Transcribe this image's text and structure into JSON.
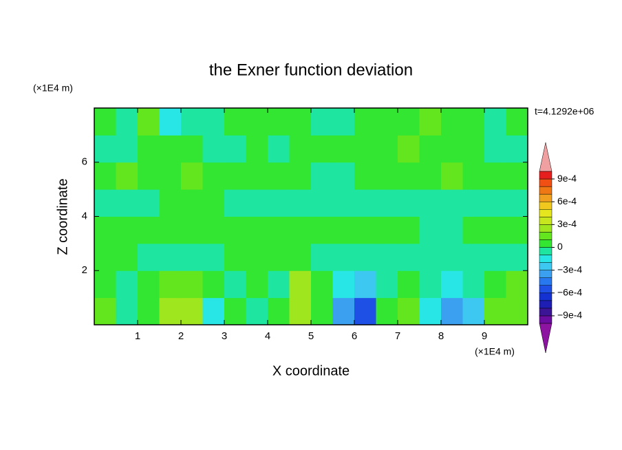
{
  "chart_data": {
    "type": "contour",
    "title": "the Exner function deviation",
    "x_label": "X coordinate",
    "y_label": "Z coordinate",
    "x_unit_label": "(×1E4 m)",
    "y_unit_label": "(×1E4 m)",
    "time_label": "t=4.1292e+06",
    "xlim": [
      0,
      10
    ],
    "ylim": [
      0,
      8
    ],
    "xticks": [
      1,
      2,
      3,
      4,
      5,
      6,
      7,
      8,
      9
    ],
    "yticks": [
      2,
      4,
      6
    ],
    "x": [
      0.25,
      0.75,
      1.25,
      1.75,
      2.25,
      2.75,
      3.25,
      3.75,
      4.25,
      4.75,
      5.25,
      5.75,
      6.25,
      6.75,
      7.25,
      7.75,
      8.25,
      8.75,
      9.25,
      9.75
    ],
    "y": [
      0.5,
      1.5,
      2.5,
      3.5,
      4.5,
      5.5,
      6.5,
      7.5
    ],
    "z": [
      [
        0.00015,
        -5e-05,
        5e-05,
        0.00025,
        0.00025,
        -0.00015,
        5e-05,
        -5e-05,
        5e-05,
        0.00025,
        5e-05,
        -0.00035,
        -0.00055,
        5e-05,
        0.00015,
        -0.00015,
        -0.00035,
        -0.00025,
        0.00015,
        0.00015
      ],
      [
        5e-05,
        -5e-05,
        5e-05,
        0.00015,
        0.00015,
        5e-05,
        -5e-05,
        5e-05,
        -5e-05,
        0.00025,
        5e-05,
        -0.00015,
        -0.00025,
        -5e-05,
        5e-05,
        -5e-05,
        -0.00015,
        -5e-05,
        5e-05,
        0.00015
      ],
      [
        5e-05,
        5e-05,
        -5e-05,
        -5e-05,
        -5e-05,
        -5e-05,
        5e-05,
        5e-05,
        5e-05,
        5e-05,
        -5e-05,
        -5e-05,
        -5e-05,
        -5e-05,
        -5e-05,
        -5e-05,
        -5e-05,
        -5e-05,
        -5e-05,
        -5e-05
      ],
      [
        5e-05,
        5e-05,
        5e-05,
        5e-05,
        5e-05,
        5e-05,
        5e-05,
        5e-05,
        5e-05,
        5e-05,
        5e-05,
        5e-05,
        5e-05,
        5e-05,
        5e-05,
        -5e-05,
        -5e-05,
        5e-05,
        5e-05,
        5e-05
      ],
      [
        -5e-05,
        -5e-05,
        -5e-05,
        5e-05,
        5e-05,
        5e-05,
        -5e-05,
        -5e-05,
        -5e-05,
        -5e-05,
        -5e-05,
        -5e-05,
        -5e-05,
        -5e-05,
        -5e-05,
        -5e-05,
        -5e-05,
        -5e-05,
        -5e-05,
        -5e-05
      ],
      [
        5e-05,
        0.00015,
        5e-05,
        5e-05,
        0.00015,
        5e-05,
        5e-05,
        5e-05,
        5e-05,
        5e-05,
        -5e-05,
        -5e-05,
        5e-05,
        5e-05,
        5e-05,
        5e-05,
        0.00015,
        5e-05,
        5e-05,
        5e-05
      ],
      [
        -5e-05,
        -5e-05,
        5e-05,
        5e-05,
        5e-05,
        -5e-05,
        -5e-05,
        5e-05,
        -5e-05,
        5e-05,
        5e-05,
        5e-05,
        5e-05,
        5e-05,
        0.00015,
        5e-05,
        5e-05,
        5e-05,
        -5e-05,
        -5e-05
      ],
      [
        5e-05,
        -5e-05,
        0.00015,
        -0.00015,
        -5e-05,
        -5e-05,
        5e-05,
        5e-05,
        5e-05,
        5e-05,
        -5e-05,
        -5e-05,
        5e-05,
        5e-05,
        5e-05,
        0.00015,
        5e-05,
        5e-05,
        -5e-05,
        5e-05
      ]
    ],
    "levels": [
      -0.001,
      -0.0009,
      -0.0008,
      -0.0007,
      -0.0006,
      -0.0005,
      -0.0004,
      -0.0003,
      -0.0002,
      -0.0001,
      0,
      0.0001,
      0.0002,
      0.0003,
      0.0004,
      0.0005,
      0.0006,
      0.0007,
      0.0008,
      0.0009,
      0.001
    ],
    "colors": [
      "#8c14a0",
      "#6a0da0",
      "#3c1496",
      "#1e1eb4",
      "#1432d2",
      "#1e50e6",
      "#2878f0",
      "#3ca0f0",
      "#3cc8f0",
      "#28e6e6",
      "#1ee6a0",
      "#32e632",
      "#64e61e",
      "#a0e61e",
      "#c8e61e",
      "#e6e61e",
      "#f0c81e",
      "#f0a01e",
      "#f07814",
      "#f05014",
      "#e61e1e",
      "#f0a0a0"
    ],
    "cbar_ticks": [
      {
        "value": 0.0009,
        "label": "9e-4"
      },
      {
        "value": 0.0006,
        "label": "6e-4"
      },
      {
        "value": 0.0003,
        "label": "3e-4"
      },
      0,
      {
        "value": -0.0003,
        "label": "−3e-4"
      },
      {
        "value": -0.0006,
        "label": "−6e-4"
      },
      {
        "value": -0.0009,
        "label": "−9e-4"
      }
    ]
  }
}
